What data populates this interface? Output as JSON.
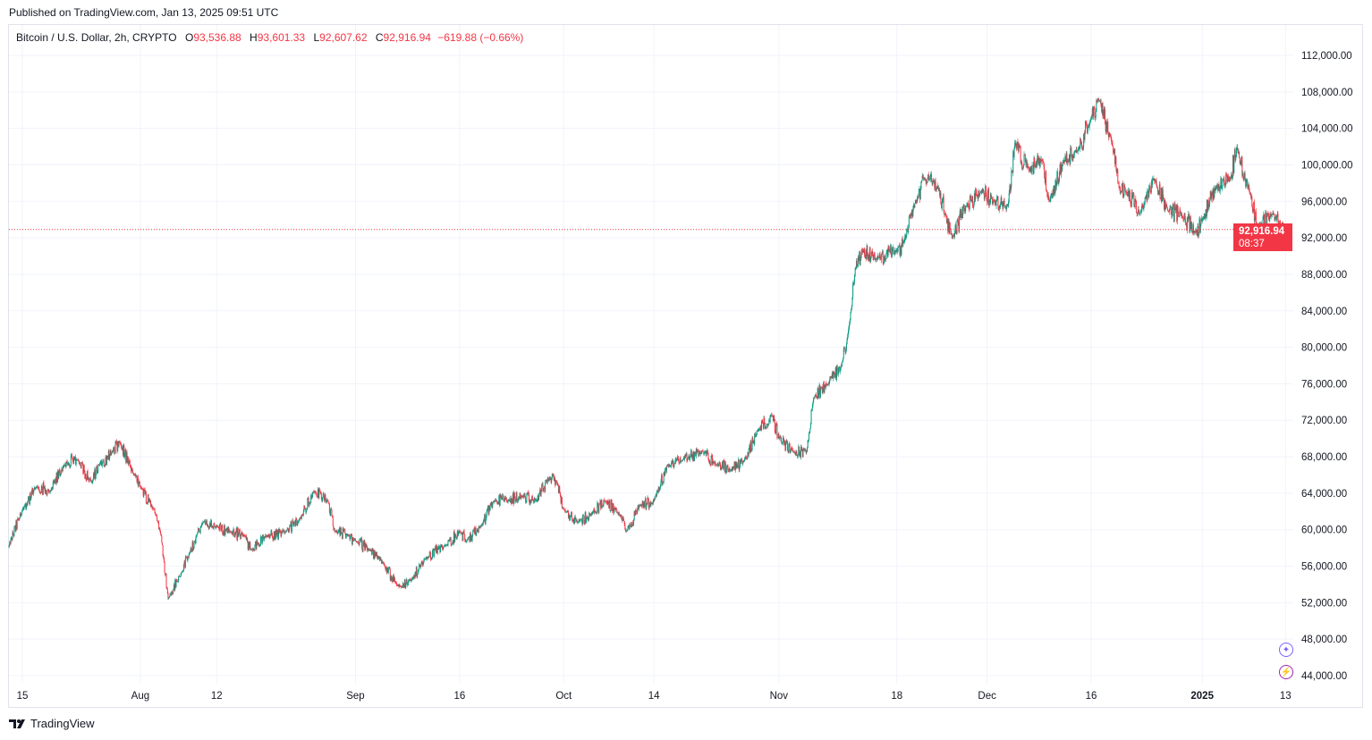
{
  "published": "Published on TradingView.com, Jan 13, 2025 09:51 UTC",
  "legend": {
    "symbol": "Bitcoin / U.S. Dollar, 2h, CRYPTO",
    "open_label": "O",
    "open": "93,536.88",
    "high_label": "H",
    "high": "93,601.33",
    "low_label": "L",
    "low": "92,607.62",
    "close_label": "C",
    "close": "92,916.94",
    "change": "−619.88 (−0.66%)"
  },
  "last_price": {
    "price": "92,916.94",
    "countdown": "08:37"
  },
  "brand": "TradingView",
  "icons": [
    "sparkle-icon",
    "lightning-icon"
  ],
  "colors": {
    "up": "#089981",
    "down": "#F23645",
    "last_price": "#F23645",
    "grid": "#f0f3fa"
  },
  "chart_data": {
    "type": "candlestick",
    "interval": "2h",
    "y_ticks": [
      "112,000.00",
      "108,000.00",
      "104,000.00",
      "100,000.00",
      "96,000.00",
      "92,000.00",
      "88,000.00",
      "84,000.00",
      "80,000.00",
      "76,000.00",
      "72,000.00",
      "68,000.00",
      "64,000.00",
      "60,000.00",
      "56,000.00",
      "52,000.00",
      "48,000.00",
      "44,000.00"
    ],
    "ylim": [
      44000,
      112000
    ],
    "x_ticks": [
      {
        "date": "2024-07-15",
        "label": "15"
      },
      {
        "date": "2024-08-01",
        "label": "Aug"
      },
      {
        "date": "2024-08-12",
        "label": "12"
      },
      {
        "date": "2024-09-01",
        "label": "Sep"
      },
      {
        "date": "2024-09-16",
        "label": "16"
      },
      {
        "date": "2024-10-01",
        "label": "Oct"
      },
      {
        "date": "2024-10-14",
        "label": "14"
      },
      {
        "date": "2024-11-01",
        "label": "Nov"
      },
      {
        "date": "2024-11-18",
        "label": "18"
      },
      {
        "date": "2024-12-01",
        "label": "Dec"
      },
      {
        "date": "2024-12-16",
        "label": "16"
      },
      {
        "date": "2025-01-01",
        "label": "2025"
      },
      {
        "date": "2025-01-13",
        "label": "13"
      }
    ],
    "grid": true,
    "last_price": 92916.94,
    "approx_price_path": [
      [
        "2024-07-13",
        58100
      ],
      [
        "2024-07-15",
        62200
      ],
      [
        "2024-07-17",
        64700
      ],
      [
        "2024-07-19",
        64200
      ],
      [
        "2024-07-21",
        67100
      ],
      [
        "2024-07-23",
        67600
      ],
      [
        "2024-07-25",
        65200
      ],
      [
        "2024-07-26",
        67100
      ],
      [
        "2024-07-28",
        68600
      ],
      [
        "2024-07-29",
        69600
      ],
      [
        "2024-07-31",
        66100
      ],
      [
        "2024-08-01",
        64700
      ],
      [
        "2024-08-03",
        62200
      ],
      [
        "2024-08-04",
        59300
      ],
      [
        "2024-08-05",
        52400
      ],
      [
        "2024-08-07",
        55400
      ],
      [
        "2024-08-08",
        57300
      ],
      [
        "2024-08-10",
        60800
      ],
      [
        "2024-08-12",
        60300
      ],
      [
        "2024-08-14",
        59800
      ],
      [
        "2024-08-16",
        59300
      ],
      [
        "2024-08-17",
        57800
      ],
      [
        "2024-08-19",
        59300
      ],
      [
        "2024-08-22",
        59800
      ],
      [
        "2024-08-24",
        61200
      ],
      [
        "2024-08-26",
        64200
      ],
      [
        "2024-08-28",
        63200
      ],
      [
        "2024-08-29",
        59800
      ],
      [
        "2024-08-31",
        59300
      ],
      [
        "2024-09-01",
        58800
      ],
      [
        "2024-09-03",
        57800
      ],
      [
        "2024-09-05",
        56300
      ],
      [
        "2024-09-07",
        53900
      ],
      [
        "2024-09-09",
        54400
      ],
      [
        "2024-09-11",
        56800
      ],
      [
        "2024-09-14",
        58300
      ],
      [
        "2024-09-16",
        59800
      ],
      [
        "2024-09-17",
        58800
      ],
      [
        "2024-09-19",
        60300
      ],
      [
        "2024-09-21",
        63200
      ],
      [
        "2024-09-23",
        63200
      ],
      [
        "2024-09-25",
        63700
      ],
      [
        "2024-09-27",
        63200
      ],
      [
        "2024-09-29",
        65600
      ],
      [
        "2024-09-30",
        65200
      ],
      [
        "2024-10-01",
        62200
      ],
      [
        "2024-10-03",
        60800
      ],
      [
        "2024-10-05",
        61700
      ],
      [
        "2024-10-07",
        63200
      ],
      [
        "2024-10-09",
        61700
      ],
      [
        "2024-10-10",
        59800
      ],
      [
        "2024-10-12",
        62700
      ],
      [
        "2024-10-14",
        63200
      ],
      [
        "2024-10-16",
        67100
      ],
      [
        "2024-10-18",
        67600
      ],
      [
        "2024-10-21",
        68600
      ],
      [
        "2024-10-23",
        67100
      ],
      [
        "2024-10-25",
        66600
      ],
      [
        "2024-10-27",
        67600
      ],
      [
        "2024-10-29",
        71000
      ],
      [
        "2024-10-31",
        72500
      ],
      [
        "2024-11-01",
        70100
      ],
      [
        "2024-11-03",
        68600
      ],
      [
        "2024-11-05",
        68600
      ],
      [
        "2024-11-06",
        74500
      ],
      [
        "2024-11-08",
        75900
      ],
      [
        "2024-11-10",
        77900
      ],
      [
        "2024-11-11",
        81800
      ],
      [
        "2024-11-12",
        88700
      ],
      [
        "2024-11-13",
        90600
      ],
      [
        "2024-11-15",
        89700
      ],
      [
        "2024-11-18",
        90600
      ],
      [
        "2024-11-19",
        91600
      ],
      [
        "2024-11-21",
        96500
      ],
      [
        "2024-11-22",
        98500
      ],
      [
        "2024-11-24",
        97500
      ],
      [
        "2024-11-25",
        94600
      ],
      [
        "2024-11-26",
        92100
      ],
      [
        "2024-11-28",
        95500
      ],
      [
        "2024-11-30",
        97000
      ],
      [
        "2024-12-02",
        96000
      ],
      [
        "2024-12-04",
        95500
      ],
      [
        "2024-12-05",
        102400
      ],
      [
        "2024-12-07",
        99500
      ],
      [
        "2024-12-09",
        100400
      ],
      [
        "2024-12-10",
        96000
      ],
      [
        "2024-12-12",
        100400
      ],
      [
        "2024-12-14",
        101400
      ],
      [
        "2024-12-16",
        105300
      ],
      [
        "2024-12-17",
        107300
      ],
      [
        "2024-12-19",
        102400
      ],
      [
        "2024-12-20",
        97500
      ],
      [
        "2024-12-21",
        97000
      ],
      [
        "2024-12-23",
        94600
      ],
      [
        "2024-12-25",
        98500
      ],
      [
        "2024-12-27",
        95000
      ],
      [
        "2024-12-29",
        94600
      ],
      [
        "2024-12-31",
        92600
      ],
      [
        "2025-01-01",
        94100
      ],
      [
        "2025-01-03",
        97500
      ],
      [
        "2025-01-05",
        98500
      ],
      [
        "2025-01-06",
        101900
      ],
      [
        "2025-01-08",
        96500
      ],
      [
        "2025-01-09",
        93100
      ],
      [
        "2025-01-11",
        94600
      ],
      [
        "2025-01-13",
        92916.94
      ]
    ]
  }
}
